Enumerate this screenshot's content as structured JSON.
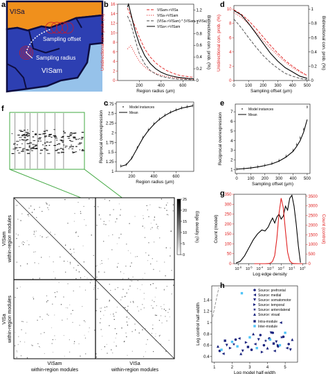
{
  "panel_letters": {
    "a": "a",
    "b": "b",
    "c": "c",
    "d": "d",
    "e": "e",
    "f": "f",
    "g": "g",
    "h": "h"
  },
  "panel_a": {
    "region_top": "VISa",
    "region_bottom": "VISam",
    "sampling_offset_label": "Sampling offset",
    "sampling_radius_label": "Sampling radius",
    "colors": {
      "visa": "#f0901c",
      "visam": "#2d3fb2",
      "outer": "#96c2ea",
      "border": "#0d0d40"
    }
  },
  "panel_f": {
    "colorbar_label": "Edge density (%)",
    "colorbar_ticks": [
      "0",
      "5",
      "10",
      "15",
      "20",
      "25"
    ],
    "row_label_top": [
      "VISam",
      "within-region modules"
    ],
    "row_label_bottom": [
      "VISa",
      "within-region modules"
    ],
    "col_label_left": [
      "VISam",
      "within-region modules"
    ],
    "col_label_right": [
      "VISa",
      "within-region modules"
    ],
    "zoom_color": "#42a842"
  },
  "chart_data": [
    {
      "panel": "b",
      "type": "line",
      "xlabel": "Region radius (µm)",
      "ylabel": "Unidirectional con. prob. (%)",
      "ylabel_right": "Bidirectional con. prob. (%)",
      "xlim": [
        0,
        700
      ],
      "xticks": [
        200,
        400,
        600
      ],
      "ylim": [
        0,
        16
      ],
      "yticks": [
        0,
        2,
        4,
        6,
        8,
        10,
        12,
        14,
        16
      ],
      "ylim_right": [
        0,
        1.3
      ],
      "yticks_right": [
        0,
        0.2,
        0.4,
        0.6,
        0.8,
        1.0,
        1.2
      ],
      "legend_position": "top-right",
      "series": [
        {
          "name": "VISam->VISa",
          "color": "#e02020",
          "dash": "dashed",
          "axis": "left",
          "x": [
            90,
            120,
            160,
            200,
            250,
            300,
            350,
            400,
            450,
            500,
            550,
            600,
            650,
            700
          ],
          "y": [
            15.2,
            13.6,
            11.4,
            9.0,
            6.6,
            4.9,
            3.7,
            2.8,
            2.1,
            1.6,
            1.2,
            0.95,
            0.8,
            0.65
          ]
        },
        {
          "name": "VISa->VISam",
          "color": "#e02020",
          "dash": "dotted",
          "axis": "left",
          "x": [
            90,
            120,
            160,
            200,
            250,
            300,
            350,
            400,
            450,
            500,
            550,
            600,
            650,
            700
          ],
          "y": [
            6.6,
            7.3,
            5.6,
            4.0,
            2.8,
            2.0,
            1.5,
            1.1,
            0.85,
            0.65,
            0.5,
            0.4,
            0.32,
            0.25
          ]
        },
        {
          "name": "(VISa->VISam) * (VISam->VISa)",
          "color": "#444444",
          "dash": "dashed",
          "axis": "right",
          "x": [
            90,
            120,
            160,
            200,
            250,
            300,
            350,
            400,
            450,
            500,
            550,
            600,
            650,
            700
          ],
          "y": [
            1.1,
            0.98,
            0.7,
            0.45,
            0.28,
            0.17,
            0.11,
            0.07,
            0.05,
            0.035,
            0.025,
            0.02,
            0.015,
            0.01
          ]
        },
        {
          "name": "VISa<->VISam",
          "color": "#000000",
          "dash": "solid",
          "axis": "right",
          "x": [
            90,
            100,
            120,
            160,
            200,
            250,
            300,
            350,
            400,
            450,
            500,
            550,
            600,
            650,
            700
          ],
          "y": [
            1.25,
            1.3,
            1.15,
            0.85,
            0.62,
            0.42,
            0.29,
            0.2,
            0.14,
            0.1,
            0.075,
            0.055,
            0.045,
            0.035,
            0.028
          ]
        }
      ]
    },
    {
      "panel": "c",
      "type": "line",
      "xlabel": "Region radius (µm)",
      "ylabel": "Reciprocal overexpression",
      "xlim": [
        60,
        760
      ],
      "xticks": [
        200,
        400,
        600
      ],
      "ylim": [
        1.0,
        2.8
      ],
      "yticks": [
        1.0,
        1.25,
        1.5,
        1.75,
        2.0,
        2.25,
        2.5,
        2.75
      ],
      "legend_position": "top-left",
      "series": [
        {
          "name": "Model instances",
          "marker": "dot",
          "color": "#555555",
          "x": [
            100,
            150,
            200,
            250,
            300,
            350,
            400,
            450,
            500,
            550,
            600,
            650,
            700,
            750
          ],
          "y": [
            1.14,
            1.18,
            1.35,
            1.62,
            1.88,
            2.08,
            2.24,
            2.36,
            2.46,
            2.54,
            2.6,
            2.65,
            2.68,
            2.71
          ]
        },
        {
          "name": "Mean",
          "color": "#000000",
          "x": [
            100,
            150,
            200,
            250,
            300,
            350,
            400,
            450,
            500,
            550,
            600,
            650,
            700,
            750
          ],
          "y": [
            1.13,
            1.17,
            1.34,
            1.6,
            1.86,
            2.06,
            2.22,
            2.35,
            2.45,
            2.53,
            2.59,
            2.64,
            2.67,
            2.7
          ]
        }
      ]
    },
    {
      "panel": "d",
      "type": "line",
      "xlabel": "Sampling offset (µm)",
      "ylabel": "Unidirectional con. prob. (%)",
      "ylabel_right": "Bidirectional con. prob. (%)",
      "xlim": [
        0,
        510
      ],
      "xticks": [
        0,
        100,
        200,
        300,
        400,
        500
      ],
      "ylim": [
        0,
        10.5
      ],
      "yticks": [
        0,
        2,
        4,
        6,
        8,
        10
      ],
      "ylim_right": [
        0,
        1.05
      ],
      "yticks_right": [
        0,
        0.2,
        0.4,
        0.6,
        0.8,
        1.0
      ],
      "series": [
        {
          "name": "VISam->VISa",
          "color": "#e02020",
          "dash": "dashed",
          "axis": "left",
          "x": [
            0,
            50,
            100,
            150,
            200,
            250,
            300,
            350,
            400,
            450,
            500
          ],
          "y": [
            9.9,
            9.3,
            8.4,
            7.3,
            6.1,
            4.9,
            3.8,
            2.8,
            2.0,
            1.3,
            0.7
          ]
        },
        {
          "name": "VISa->VISam",
          "color": "#e02020",
          "dash": "dotted",
          "axis": "left",
          "x": [
            0,
            50,
            100,
            150,
            200,
            250,
            300,
            350,
            400,
            450,
            500
          ],
          "y": [
            9.5,
            8.9,
            7.9,
            6.8,
            5.6,
            4.5,
            3.5,
            2.6,
            1.8,
            1.2,
            0.7
          ]
        },
        {
          "name": "(VISa->VISam) * (VISam->VISa)",
          "color": "#444444",
          "dash": "dashed",
          "axis": "right",
          "x": [
            0,
            50,
            100,
            150,
            200,
            250,
            300,
            350,
            400,
            450,
            500
          ],
          "y": [
            0.86,
            0.74,
            0.6,
            0.47,
            0.35,
            0.25,
            0.17,
            0.1,
            0.06,
            0.03,
            0.01
          ]
        },
        {
          "name": "VISa<->VISam",
          "color": "#000000",
          "dash": "solid",
          "axis": "right",
          "x": [
            0,
            50,
            100,
            150,
            200,
            250,
            300,
            350,
            400,
            450,
            500
          ],
          "y": [
            0.98,
            0.92,
            0.8,
            0.66,
            0.52,
            0.38,
            0.27,
            0.18,
            0.12,
            0.06,
            0.03
          ]
        }
      ]
    },
    {
      "panel": "e",
      "type": "line",
      "xlabel": "Sampling offset (µm)",
      "ylabel": "Reciprocal overexpression",
      "xlim": [
        -10,
        520
      ],
      "xticks": [
        0,
        100,
        200,
        300,
        400,
        500
      ],
      "ylim": [
        0.6,
        7.8
      ],
      "yticks": [
        1,
        2,
        3,
        4,
        5,
        6,
        7
      ],
      "legend_position": "top-left",
      "series": [
        {
          "name": "Model instances",
          "marker": "dot",
          "color": "#555555",
          "x": [
            0,
            50,
            100,
            150,
            200,
            250,
            300,
            350,
            400,
            425,
            450,
            475,
            500
          ],
          "y": [
            1.05,
            1.1,
            1.18,
            1.3,
            1.45,
            1.65,
            1.95,
            2.4,
            3.0,
            3.6,
            4.3,
            5.2,
            7.5
          ]
        },
        {
          "name": "Mean",
          "color": "#000000",
          "x": [
            0,
            50,
            100,
            150,
            200,
            250,
            300,
            350,
            400,
            425,
            450,
            475,
            500
          ],
          "y": [
            1.05,
            1.1,
            1.17,
            1.28,
            1.42,
            1.6,
            1.88,
            2.3,
            2.9,
            3.4,
            4.0,
            4.9,
            6.2
          ]
        }
      ]
    },
    {
      "panel": "g",
      "type": "line",
      "xlabel": "Log edge density",
      "ylabel": "Count (model)",
      "ylabel_right": "Count (control)",
      "xscale": "log",
      "xlim": [
        -6.4,
        0.3
      ],
      "xticks": [
        "10^-6",
        "10^-5",
        "10^-4",
        "10^-3",
        "10^-2",
        "10^-1",
        "10^0"
      ],
      "ylim": [
        0,
        350
      ],
      "yticks": [
        0,
        50,
        100,
        150,
        200,
        250,
        300,
        350
      ],
      "ylim_right": [
        0,
        3600
      ],
      "yticks_right": [
        0,
        500,
        1000,
        1500,
        2000,
        2500,
        3000,
        3500
      ],
      "series": [
        {
          "name": "model",
          "color": "#000000",
          "axis": "left",
          "x": [
            -6.2,
            -5.8,
            -5.4,
            -5.0,
            -4.6,
            -4.2,
            -3.8,
            -3.5,
            -3.2,
            -3.0,
            -2.8,
            -2.6,
            -2.4,
            -2.2,
            -2.0,
            -1.8,
            -1.6,
            -1.4,
            -1.2,
            -1.0,
            -0.8,
            -0.6,
            -0.4,
            -0.2
          ],
          "y": [
            3,
            12,
            40,
            80,
            120,
            150,
            170,
            165,
            185,
            210,
            230,
            205,
            235,
            250,
            225,
            240,
            290,
            270,
            330,
            345,
            290,
            200,
            90,
            5
          ]
        },
        {
          "name": "control",
          "color": "#e02020",
          "axis": "right",
          "x": [
            -4.5,
            -4.0,
            -3.5,
            -3.2,
            -3.0,
            -2.8,
            -2.6,
            -2.4,
            -2.2,
            -2.0,
            -1.8,
            -1.6,
            -1.4,
            -1.2,
            -1.0,
            -0.8,
            -0.4,
            0.0
          ],
          "y": [
            0,
            0,
            0,
            5,
            30,
            120,
            420,
            1300,
            2600,
            3400,
            2900,
            1700,
            600,
            150,
            30,
            5,
            0,
            0
          ]
        }
      ]
    },
    {
      "panel": "h",
      "type": "scatter",
      "xlabel": "Log model half-width",
      "ylabel": "Log control half-width",
      "xlim": [
        0.85,
        5.7
      ],
      "xticks": [
        1,
        2,
        3,
        4,
        5
      ],
      "ylim": [
        0.3,
        1.65
      ],
      "yticks": [
        0.4,
        0.6,
        0.8,
        1.0,
        1.2,
        1.4
      ],
      "legend_position": "top-right",
      "series": [
        {
          "name": "Source: prefrontal",
          "marker": "circle",
          "color": "#1a237e",
          "x": [
            1.3,
            2.2,
            3.1,
            3.6,
            3.8,
            4.1,
            4.3,
            4.6,
            4.9,
            5.2
          ],
          "y": [
            0.5,
            0.7,
            0.52,
            0.78,
            0.6,
            0.72,
            0.82,
            0.58,
            0.75,
            0.62
          ]
        },
        {
          "name": "Source: medial",
          "marker": "triangle-left",
          "color": "#1a237e",
          "x": [
            1.5,
            2.4,
            3.3,
            4.4,
            4.75,
            5.1
          ],
          "y": [
            0.45,
            0.72,
            0.62,
            0.5,
            1.0,
            0.55
          ]
        },
        {
          "name": "Source: somatomotor",
          "marker": "triangle-down",
          "color": "#1a237e",
          "x": [
            1.7,
            2.6,
            3.5,
            4.2,
            4.5,
            5.3
          ],
          "y": [
            0.6,
            0.5,
            0.7,
            0.82,
            0.66,
            0.52
          ]
        },
        {
          "name": "Source: temporal",
          "marker": "triangle-right",
          "color": "#1a237e",
          "x": [
            1.9,
            2.8,
            3.7,
            4.6
          ],
          "y": [
            0.55,
            0.65,
            0.48,
            0.6
          ]
        },
        {
          "name": "Source: anterolateral",
          "marker": "star",
          "color": "#1a237e",
          "x": [
            2.1,
            3.9,
            4.8
          ],
          "y": [
            0.62,
            0.68,
            0.74
          ]
        },
        {
          "name": "Source: visual",
          "marker": "triangle-up",
          "color": "#1a237e",
          "x": [
            1.2,
            2.5,
            3.2,
            4.0,
            5.4
          ],
          "y": [
            0.58,
            0.45,
            0.8,
            0.55,
            0.7
          ]
        },
        {
          "name": "Intra-module",
          "marker": "square",
          "color": "#1a237e",
          "x": [
            1.6,
            2.9,
            4.35
          ],
          "y": [
            0.68,
            0.57,
            0.63
          ]
        },
        {
          "name": "Inter-module",
          "marker": "square",
          "color": "#4fc3f7",
          "x": [
            1.4,
            2.0,
            2.3,
            3.0,
            3.4,
            4.15,
            4.7,
            5.0,
            2.55
          ],
          "y": [
            0.52,
            0.66,
            0.58,
            0.74,
            0.55,
            0.7,
            0.6,
            0.82,
            1.52
          ]
        },
        {
          "name": "",
          "type": "reference",
          "color": "#888888",
          "dash": "dashed",
          "x": [
            0.9,
            1.25
          ],
          "y": [
            1.1,
            1.62
          ]
        }
      ]
    }
  ]
}
